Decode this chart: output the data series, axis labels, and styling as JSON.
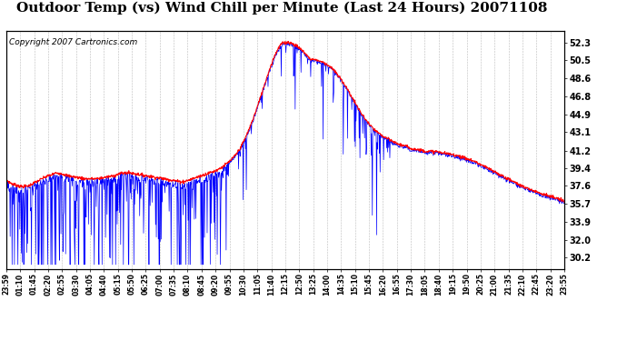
{
  "title": "Outdoor Temp (vs) Wind Chill per Minute (Last 24 Hours) 20071108",
  "copyright_text": "Copyright 2007 Cartronics.com",
  "y_ticks": [
    30.2,
    32.0,
    33.9,
    35.7,
    37.6,
    39.4,
    41.2,
    43.1,
    44.9,
    46.8,
    48.6,
    50.5,
    52.3
  ],
  "ylim": [
    29.0,
    53.5
  ],
  "x_labels": [
    "23:59",
    "01:10",
    "01:45",
    "02:20",
    "02:55",
    "03:30",
    "04:05",
    "04:40",
    "05:15",
    "05:50",
    "06:25",
    "07:00",
    "07:35",
    "08:10",
    "08:45",
    "09:20",
    "09:55",
    "10:30",
    "11:05",
    "11:40",
    "12:15",
    "12:50",
    "13:25",
    "14:00",
    "14:35",
    "15:10",
    "15:45",
    "16:20",
    "16:55",
    "17:30",
    "18:05",
    "18:40",
    "19:15",
    "19:50",
    "20:25",
    "21:00",
    "21:35",
    "22:10",
    "22:45",
    "23:20",
    "23:55"
  ],
  "outdoor_color": "#ff0000",
  "windchill_color": "#0000ff",
  "background_color": "#ffffff",
  "grid_color": "#bbbbbb",
  "title_fontsize": 11,
  "copyright_fontsize": 6.5,
  "outdoor_smooth": [
    38.2,
    37.8,
    37.6,
    37.5,
    37.6,
    37.9,
    38.2,
    38.5,
    38.7,
    38.9,
    38.8,
    38.6,
    38.5,
    38.4,
    38.3,
    38.3,
    38.3,
    38.4,
    38.5,
    38.6,
    38.8,
    38.9,
    38.9,
    38.8,
    38.7,
    38.6,
    38.5,
    38.4,
    38.3,
    38.2,
    38.1,
    38.0,
    38.1,
    38.3,
    38.5,
    38.7,
    38.9,
    39.1,
    39.4,
    39.8,
    40.3,
    41.0,
    42.0,
    43.3,
    44.8,
    46.5,
    48.3,
    50.0,
    51.4,
    52.2,
    52.3,
    52.1,
    51.7,
    51.2,
    50.6,
    50.5,
    50.3,
    50.0,
    49.5,
    48.8,
    48.0,
    47.0,
    46.0,
    45.0,
    44.2,
    43.5,
    43.0,
    42.6,
    42.3,
    42.0,
    41.8,
    41.6,
    41.4,
    41.3,
    41.2,
    41.1,
    41.1,
    41.0,
    40.9,
    40.8,
    40.7,
    40.5,
    40.3,
    40.1,
    39.8,
    39.5,
    39.2,
    38.9,
    38.6,
    38.3,
    38.0,
    37.7,
    37.4,
    37.2,
    37.0,
    36.8,
    36.6,
    36.4,
    36.2,
    36.0
  ],
  "wc_spike_prob_morning": 0.35,
  "wc_spike_scale_morning": 3.5,
  "wc_spike_prob_noon": 0.12,
  "wc_spike_scale_noon": 2.5,
  "wc_spike_prob_afternoon": 0.18,
  "wc_spike_scale_afternoon": 2.0,
  "wc_min": 29.5
}
